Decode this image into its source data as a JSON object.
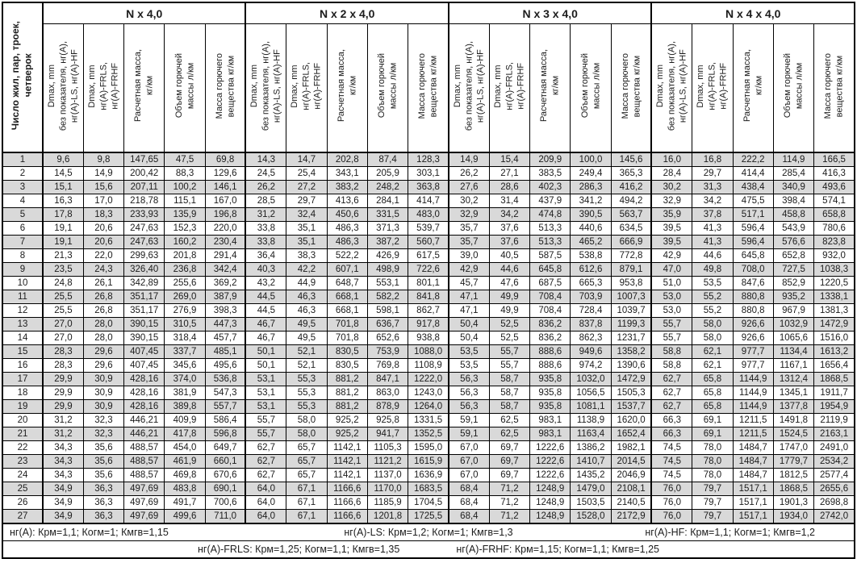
{
  "table": {
    "corner_header": "Число жил, пар, троек,\nчетверок",
    "sub_headers": [
      "Dmax, mm\nбез показателя, нг(А),\nнг(А)-LS, нг(А)-HF",
      "Dmax, mm\nнг(А)-FRLS,\nнг(А)-FRHF",
      "Расчетная масса,\nкг/км",
      "Объем горючей\nмассы л/км",
      "Масса горючего\nвещества кг/км"
    ],
    "row_numbers": [
      "1",
      "2",
      "3",
      "4",
      "5",
      "6",
      "7",
      "8",
      "9",
      "10",
      "11",
      "12",
      "13",
      "14",
      "15",
      "16",
      "17",
      "18",
      "19",
      "20",
      "21",
      "22",
      "23",
      "24",
      "25",
      "26",
      "27"
    ],
    "groups": [
      {
        "label": "N x 4,0",
        "rows": [
          [
            "9,6",
            "9,8",
            "147,65",
            "47,5",
            "69,8"
          ],
          [
            "14,5",
            "14,9",
            "200,42",
            "88,3",
            "129,6"
          ],
          [
            "15,1",
            "15,6",
            "207,11",
            "100,2",
            "146,1"
          ],
          [
            "16,3",
            "17,0",
            "218,78",
            "115,1",
            "167,0"
          ],
          [
            "17,8",
            "18,3",
            "233,93",
            "135,9",
            "196,8"
          ],
          [
            "19,1",
            "20,6",
            "247,63",
            "152,3",
            "220,0"
          ],
          [
            "19,1",
            "20,6",
            "247,63",
            "160,2",
            "230,4"
          ],
          [
            "21,3",
            "22,0",
            "299,63",
            "201,8",
            "291,4"
          ],
          [
            "23,5",
            "24,3",
            "326,40",
            "236,8",
            "342,4"
          ],
          [
            "24,8",
            "26,1",
            "342,89",
            "255,6",
            "369,2"
          ],
          [
            "25,5",
            "26,8",
            "351,17",
            "269,0",
            "387,9"
          ],
          [
            "25,5",
            "26,8",
            "351,17",
            "276,9",
            "398,3"
          ],
          [
            "27,0",
            "28,0",
            "390,15",
            "310,5",
            "447,3"
          ],
          [
            "27,0",
            "28,0",
            "390,15",
            "318,4",
            "457,7"
          ],
          [
            "28,3",
            "29,6",
            "407,45",
            "337,7",
            "485,1"
          ],
          [
            "28,3",
            "29,6",
            "407,45",
            "345,6",
            "495,6"
          ],
          [
            "29,9",
            "30,9",
            "428,16",
            "374,0",
            "536,8"
          ],
          [
            "29,9",
            "30,9",
            "428,16",
            "381,9",
            "547,3"
          ],
          [
            "29,9",
            "30,9",
            "428,16",
            "389,8",
            "557,7"
          ],
          [
            "31,2",
            "32,3",
            "446,21",
            "409,9",
            "586,4"
          ],
          [
            "31,2",
            "32,3",
            "446,21",
            "417,8",
            "596,8"
          ],
          [
            "34,3",
            "35,6",
            "488,57",
            "454,0",
            "649,7"
          ],
          [
            "34,3",
            "35,6",
            "488,57",
            "461,9",
            "660,1"
          ],
          [
            "34,3",
            "35,6",
            "488,57",
            "469,8",
            "670,6"
          ],
          [
            "34,9",
            "36,3",
            "497,69",
            "483,8",
            "690,1"
          ],
          [
            "34,9",
            "36,3",
            "497,69",
            "491,7",
            "700,6"
          ],
          [
            "34,9",
            "36,3",
            "497,69",
            "499,6",
            "711,0"
          ]
        ]
      },
      {
        "label": "N x 2 x 4,0",
        "rows": [
          [
            "14,3",
            "14,7",
            "202,8",
            "87,4",
            "128,3"
          ],
          [
            "24,5",
            "25,4",
            "343,1",
            "205,9",
            "303,1"
          ],
          [
            "26,2",
            "27,2",
            "383,2",
            "248,2",
            "363,8"
          ],
          [
            "28,5",
            "29,7",
            "413,6",
            "284,1",
            "414,7"
          ],
          [
            "31,2",
            "32,4",
            "450,6",
            "331,5",
            "483,0"
          ],
          [
            "33,8",
            "35,1",
            "486,3",
            "371,3",
            "539,7"
          ],
          [
            "33,8",
            "35,1",
            "486,3",
            "387,2",
            "560,7"
          ],
          [
            "36,4",
            "38,3",
            "522,2",
            "426,9",
            "617,5"
          ],
          [
            "40,3",
            "42,2",
            "607,1",
            "498,9",
            "722,6"
          ],
          [
            "43,2",
            "44,9",
            "648,7",
            "553,1",
            "801,1"
          ],
          [
            "44,5",
            "46,3",
            "668,1",
            "582,2",
            "841,8"
          ],
          [
            "44,5",
            "46,3",
            "668,1",
            "598,1",
            "862,7"
          ],
          [
            "46,7",
            "49,5",
            "701,8",
            "636,7",
            "917,8"
          ],
          [
            "46,7",
            "49,5",
            "701,8",
            "652,6",
            "938,8"
          ],
          [
            "50,1",
            "52,1",
            "830,5",
            "753,9",
            "1088,0"
          ],
          [
            "50,1",
            "52,1",
            "830,5",
            "769,8",
            "1108,9"
          ],
          [
            "53,1",
            "55,3",
            "881,2",
            "847,1",
            "1222,0"
          ],
          [
            "53,1",
            "55,3",
            "881,2",
            "863,0",
            "1243,0"
          ],
          [
            "53,1",
            "55,3",
            "881,2",
            "878,9",
            "1264,0"
          ],
          [
            "55,7",
            "58,0",
            "925,2",
            "925,8",
            "1331,5"
          ],
          [
            "55,7",
            "58,0",
            "925,2",
            "941,7",
            "1352,5"
          ],
          [
            "62,7",
            "65,7",
            "1142,1",
            "1105,3",
            "1595,0"
          ],
          [
            "62,7",
            "65,7",
            "1142,1",
            "1121,2",
            "1615,9"
          ],
          [
            "62,7",
            "65,7",
            "1142,1",
            "1137,0",
            "1636,9"
          ],
          [
            "64,0",
            "67,1",
            "1166,6",
            "1170,0",
            "1683,5"
          ],
          [
            "64,0",
            "67,1",
            "1166,6",
            "1185,9",
            "1704,5"
          ],
          [
            "64,0",
            "67,1",
            "1166,6",
            "1201,8",
            "1725,5"
          ]
        ]
      },
      {
        "label": "N x 3 x 4,0",
        "rows": [
          [
            "14,9",
            "15,4",
            "209,9",
            "100,0",
            "145,6"
          ],
          [
            "26,2",
            "27,1",
            "383,5",
            "249,4",
            "365,3"
          ],
          [
            "27,6",
            "28,6",
            "402,3",
            "286,3",
            "416,2"
          ],
          [
            "30,2",
            "31,4",
            "437,9",
            "341,2",
            "494,2"
          ],
          [
            "32,9",
            "34,2",
            "474,8",
            "390,5",
            "563,7"
          ],
          [
            "35,7",
            "37,6",
            "513,3",
            "440,6",
            "634,5"
          ],
          [
            "35,7",
            "37,6",
            "513,3",
            "465,2",
            "666,9"
          ],
          [
            "39,0",
            "40,5",
            "587,5",
            "538,8",
            "772,8"
          ],
          [
            "42,9",
            "44,6",
            "645,8",
            "612,6",
            "879,1"
          ],
          [
            "45,7",
            "47,6",
            "687,5",
            "665,3",
            "953,8"
          ],
          [
            "47,1",
            "49,9",
            "708,4",
            "703,9",
            "1007,3"
          ],
          [
            "47,1",
            "49,9",
            "708,4",
            "728,4",
            "1039,7"
          ],
          [
            "50,4",
            "52,5",
            "836,2",
            "837,8",
            "1199,3"
          ],
          [
            "50,4",
            "52,5",
            "836,2",
            "862,3",
            "1231,7"
          ],
          [
            "53,5",
            "55,7",
            "888,6",
            "949,6",
            "1358,2"
          ],
          [
            "53,5",
            "55,7",
            "888,6",
            "974,2",
            "1390,6"
          ],
          [
            "56,3",
            "58,7",
            "935,8",
            "1032,0",
            "1472,9"
          ],
          [
            "56,3",
            "58,7",
            "935,8",
            "1056,5",
            "1505,3"
          ],
          [
            "56,3",
            "58,7",
            "935,8",
            "1081,1",
            "1537,7"
          ],
          [
            "59,1",
            "62,5",
            "983,1",
            "1138,9",
            "1620,0"
          ],
          [
            "59,1",
            "62,5",
            "983,1",
            "1163,4",
            "1652,4"
          ],
          [
            "67,0",
            "69,7",
            "1222,6",
            "1386,2",
            "1982,1"
          ],
          [
            "67,0",
            "69,7",
            "1222,6",
            "1410,7",
            "2014,5"
          ],
          [
            "67,0",
            "69,7",
            "1222,6",
            "1435,2",
            "2046,9"
          ],
          [
            "68,4",
            "71,2",
            "1248,9",
            "1479,0",
            "2108,1"
          ],
          [
            "68,4",
            "71,2",
            "1248,9",
            "1503,5",
            "2140,5"
          ],
          [
            "68,4",
            "71,2",
            "1248,9",
            "1528,0",
            "2172,9"
          ]
        ]
      },
      {
        "label": "N x 4 x 4,0",
        "rows": [
          [
            "16,0",
            "16,8",
            "222,2",
            "114,9",
            "166,5"
          ],
          [
            "28,4",
            "29,7",
            "414,4",
            "285,4",
            "416,3"
          ],
          [
            "30,2",
            "31,3",
            "438,4",
            "340,9",
            "493,6"
          ],
          [
            "32,9",
            "34,2",
            "475,5",
            "398,4",
            "574,1"
          ],
          [
            "35,9",
            "37,8",
            "517,1",
            "458,8",
            "658,8"
          ],
          [
            "39,5",
            "41,3",
            "596,4",
            "543,9",
            "780,6"
          ],
          [
            "39,5",
            "41,3",
            "596,4",
            "576,6",
            "823,8"
          ],
          [
            "42,9",
            "44,6",
            "645,8",
            "652,8",
            "932,0"
          ],
          [
            "47,0",
            "49,8",
            "708,0",
            "727,5",
            "1038,3"
          ],
          [
            "51,0",
            "53,5",
            "847,6",
            "852,9",
            "1220,5"
          ],
          [
            "53,0",
            "55,2",
            "880,8",
            "935,2",
            "1338,1"
          ],
          [
            "53,0",
            "55,2",
            "880,8",
            "967,9",
            "1381,3"
          ],
          [
            "55,7",
            "58,0",
            "926,6",
            "1032,9",
            "1472,9"
          ],
          [
            "55,7",
            "58,0",
            "926,6",
            "1065,6",
            "1516,0"
          ],
          [
            "58,8",
            "62,1",
            "977,7",
            "1134,4",
            "1613,2"
          ],
          [
            "58,8",
            "62,1",
            "977,7",
            "1167,1",
            "1656,4"
          ],
          [
            "62,7",
            "65,8",
            "1144,9",
            "1312,4",
            "1868,5"
          ],
          [
            "62,7",
            "65,8",
            "1144,9",
            "1345,1",
            "1911,7"
          ],
          [
            "62,7",
            "65,8",
            "1144,9",
            "1377,8",
            "1954,9"
          ],
          [
            "66,3",
            "69,1",
            "1211,5",
            "1491,8",
            "2119,9"
          ],
          [
            "66,3",
            "69,1",
            "1211,5",
            "1524,5",
            "2163,1"
          ],
          [
            "74,5",
            "78,0",
            "1484,7",
            "1747,0",
            "2491,0"
          ],
          [
            "74,5",
            "78,0",
            "1484,7",
            "1779,7",
            "2534,2"
          ],
          [
            "74,5",
            "78,0",
            "1484,7",
            "1812,5",
            "2577,4"
          ],
          [
            "76,0",
            "79,7",
            "1517,1",
            "1868,5",
            "2655,6"
          ],
          [
            "76,0",
            "79,7",
            "1517,1",
            "1901,3",
            "2698,8"
          ],
          [
            "76,0",
            "79,7",
            "1517,1",
            "1934,0",
            "2742,0"
          ]
        ]
      }
    ],
    "footer": {
      "line1": [
        "нг(А): Крм=1,1;  Когм=1;  Кмгв=1,15",
        "нг(А)-LS: Крм=1,2;  Когм=1;  Кмгв=1,3",
        "нг(А)-HF: Крм=1,1;  Когм=1;  Кмгв=1,2"
      ],
      "line2": [
        "нг(А)-FRLS: Крм=1,25;  Когм=1,1;  Кмгв=1,35",
        "нг(А)-FRHF: Крм=1,15;  Когм=1,1;  Кмгв=1,25"
      ]
    },
    "colors": {
      "stripe": "#d9d9d9",
      "border": "#000000",
      "text": "#1c1c1c"
    }
  }
}
